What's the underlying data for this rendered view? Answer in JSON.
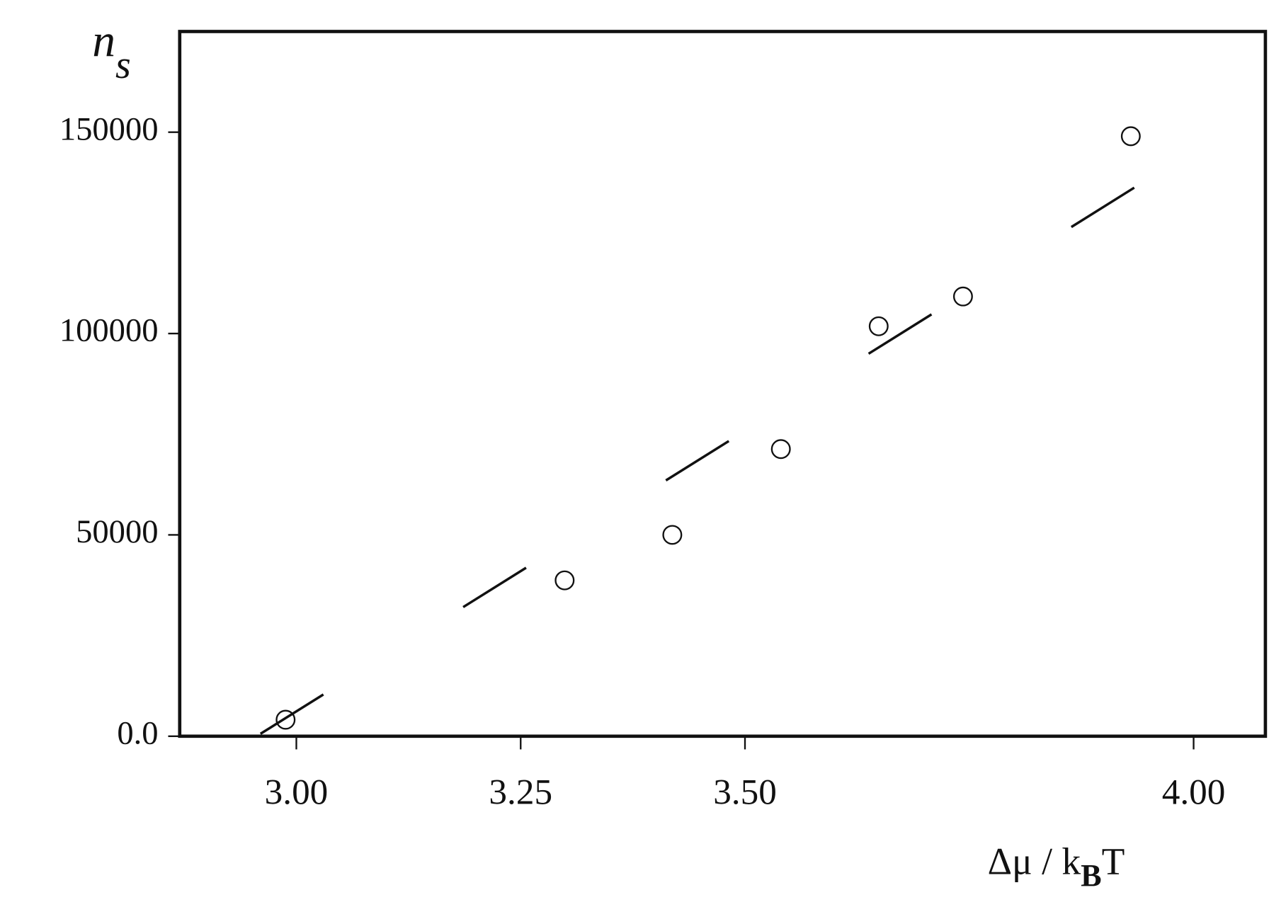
{
  "chart_data": {
    "type": "scatter",
    "ylabel": {
      "main": "n",
      "sub": "s"
    },
    "xlabel": {
      "pre": "Δμ / k",
      "sub": "B",
      "post": "T"
    },
    "xlim": [
      2.87,
      4.08
    ],
    "xticks": [
      {
        "value": 3.0,
        "label": "3.00"
      },
      {
        "value": 3.25,
        "label": "3.25"
      },
      {
        "value": 3.5,
        "label": "3.50"
      },
      {
        "value": 4.0,
        "label": "4.00"
      }
    ],
    "ylim": [
      0,
      175000
    ],
    "yticks": [
      {
        "value": 0,
        "label": "0.0"
      },
      50000,
      100000,
      150000
    ],
    "series": [
      {
        "color": "#111111",
        "marker": "circle",
        "x": [
          2.988,
          3.299,
          3.419,
          3.54,
          3.649,
          3.743,
          3.93
        ],
        "values": [
          4100,
          38700,
          50000,
          71300,
          101800,
          109200,
          149000
        ]
      },
      {
        "color": "#111111",
        "marker": "dashed-line",
        "x": [
          2.96,
          4.012
        ],
        "values": [
          600,
          147100
        ]
      }
    ]
  }
}
